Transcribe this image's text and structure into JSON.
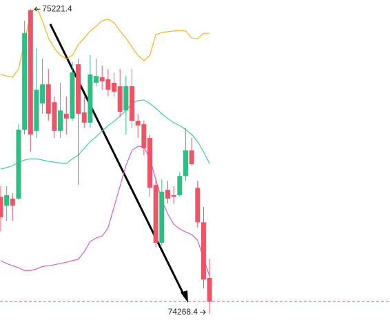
{
  "chart_data": {
    "type": "candlestick",
    "ylim": [
      74220,
      75250
    ],
    "up_color": "#2ebd85",
    "down_color": "#ef5466",
    "open": [
      74634,
      74606,
      74628,
      74628,
      74844,
      75218,
      74840,
      74926,
      74986,
      74930,
      74840,
      74894,
      74879,
      75049,
      74898,
      74866,
      74991,
      75008,
      75002,
      74991,
      74980,
      74904,
      74980,
      74872,
      74861,
      74818,
      74671,
      74490,
      74656,
      74639,
      74639,
      74699,
      74779,
      74662,
      74554,
      74380
    ],
    "high": [
      74667,
      74667,
      74645,
      74861,
      75185,
      75221.4,
      75099,
      75066,
      75034,
      74948,
      74991,
      74948,
      75056,
      75066,
      74948,
      75077,
      75066,
      75045,
      75034,
      75023,
      75034,
      75012,
      75034,
      74894,
      74872,
      74829,
      74688,
      74688,
      74684,
      74667,
      74710,
      74850,
      74818,
      74684,
      74602,
      74440
    ],
    "low": [
      74526,
      74559,
      74559,
      74624,
      74829,
      74775,
      74818,
      74894,
      74872,
      74818,
      74818,
      74829,
      74872,
      74671,
      74850,
      74850,
      74980,
      74969,
      74948,
      74948,
      74883,
      74829,
      74850,
      74818,
      74764,
      74634,
      74477,
      74481,
      74613,
      74613,
      74634,
      74684,
      74732,
      74537,
      74347,
      74268.4
    ],
    "close": [
      74570,
      74639,
      74606,
      74844,
      75146,
      74829,
      74969,
      74986,
      74894,
      74840,
      74904,
      74879,
      75023,
      74894,
      74866,
      75017,
      75012,
      74995,
      74969,
      74963,
      74900,
      74980,
      74872,
      74857,
      74786,
      74662,
      74490,
      74650,
      74628,
      74634,
      74699,
      74779,
      74736,
      74554,
      74375,
      74306
    ],
    "bands": [
      {
        "color": "#f5b31e",
        "values": [
          75017,
          75012,
          75008,
          75034,
          75120,
          75207,
          75228,
          75185,
          75131,
          75099,
          75077,
          75066,
          75077,
          75110,
          75131,
          75153,
          75168,
          75185,
          75190,
          75179,
          75153,
          75131,
          75103,
          75077,
          75060,
          75077,
          75142,
          75148,
          75151,
          75153,
          75155,
          75153,
          75131,
          75129,
          75146,
          75146
        ]
      },
      {
        "color": "#3fcfae",
        "values": [
          74721,
          74725,
          74732,
          74742,
          74749,
          74753,
          74753,
          74749,
          74745,
          74742,
          74740,
          74738,
          74753,
          74764,
          74786,
          74807,
          74822,
          74840,
          74857,
          74870,
          74887,
          74904,
          74926,
          74935,
          74937,
          74926,
          74911,
          74894,
          74879,
          74866,
          74857,
          74844,
          74829,
          74807,
          74775,
          74738
        ]
      },
      {
        "color": "#d65fd2",
        "values": [
          74434,
          74425,
          74418,
          74412,
          74403,
          74403,
          74408,
          74416,
          74418,
          74421,
          74425,
          74429,
          74434,
          74438,
          74462,
          74494,
          74505,
          74511,
          74537,
          74602,
          74667,
          74732,
          74779,
          74792,
          74790,
          74753,
          74688,
          74624,
          74580,
          74548,
          74533,
          74524,
          74516,
          74498,
          74440,
          74386
        ]
      }
    ],
    "max_label": "75221.4",
    "min_label": "74268.4",
    "last_price_line_color": "#e05a6a"
  }
}
